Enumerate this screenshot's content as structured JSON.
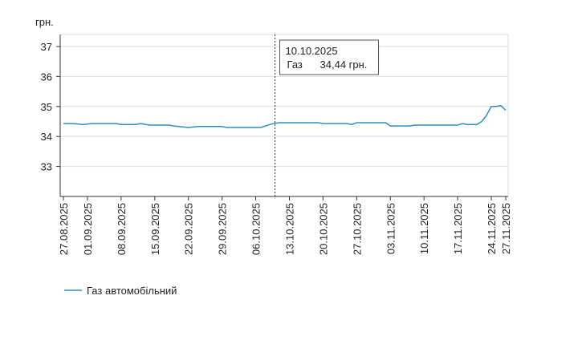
{
  "chart_data": {
    "type": "line",
    "y_label": "грн.",
    "x": [
      "27.08.2025",
      "29.08.2025",
      "31.08.2025",
      "02.09.2025",
      "07.09.2025",
      "08.09.2025",
      "11.09.2025",
      "12.09.2025",
      "14.09.2025",
      "18.09.2025",
      "19.09.2025",
      "22.09.2025",
      "24.09.2025",
      "29.09.2025",
      "30.09.2025",
      "07.10.2025",
      "09.10.2025",
      "10.10.2025",
      "11.10.2025",
      "19.10.2025",
      "20.10.2025",
      "25.10.2025",
      "26.10.2025",
      "27.10.2025",
      "02.11.2025",
      "03.11.2025",
      "07.11.2025",
      "08.11.2025",
      "17.11.2025",
      "18.11.2025",
      "19.11.2025",
      "21.11.2025",
      "22.11.2025",
      "23.11.2025",
      "24.11.2025",
      "25.11.2025",
      "26.11.2025",
      "27.11.2025"
    ],
    "series": [
      {
        "name": "Газ автомобільний",
        "color": "#2e8fc4",
        "values": [
          34.43,
          34.43,
          34.4,
          34.43,
          34.43,
          34.4,
          34.4,
          34.43,
          34.38,
          34.38,
          34.35,
          34.3,
          34.33,
          34.33,
          34.3,
          34.3,
          34.4,
          34.44,
          34.46,
          34.46,
          34.43,
          34.43,
          34.4,
          34.46,
          34.46,
          34.35,
          34.35,
          34.38,
          34.38,
          34.43,
          34.4,
          34.4,
          34.5,
          34.7,
          35.0,
          35.0,
          35.03,
          34.87
        ]
      }
    ],
    "xlim": [
      "27.08.2025",
      "27.11.2025"
    ],
    "xticks": [
      "27.08.2025",
      "01.09.2025",
      "08.09.2025",
      "15.09.2025",
      "22.09.2025",
      "29.09.2025",
      "06.10.2025",
      "13.10.2025",
      "20.10.2025",
      "27.10.2025",
      "03.11.2025",
      "10.11.2025",
      "17.11.2025",
      "24.11.2025",
      "27.11.2025"
    ],
    "ylim": [
      32,
      37.4
    ],
    "yticks": [
      33,
      34,
      35,
      36,
      37
    ],
    "grid": true,
    "legend": "bottom-left",
    "tooltip": {
      "x": "10.10.2025",
      "date": "10.10.2025",
      "series": "Газ",
      "value": "34,44 грн."
    }
  }
}
